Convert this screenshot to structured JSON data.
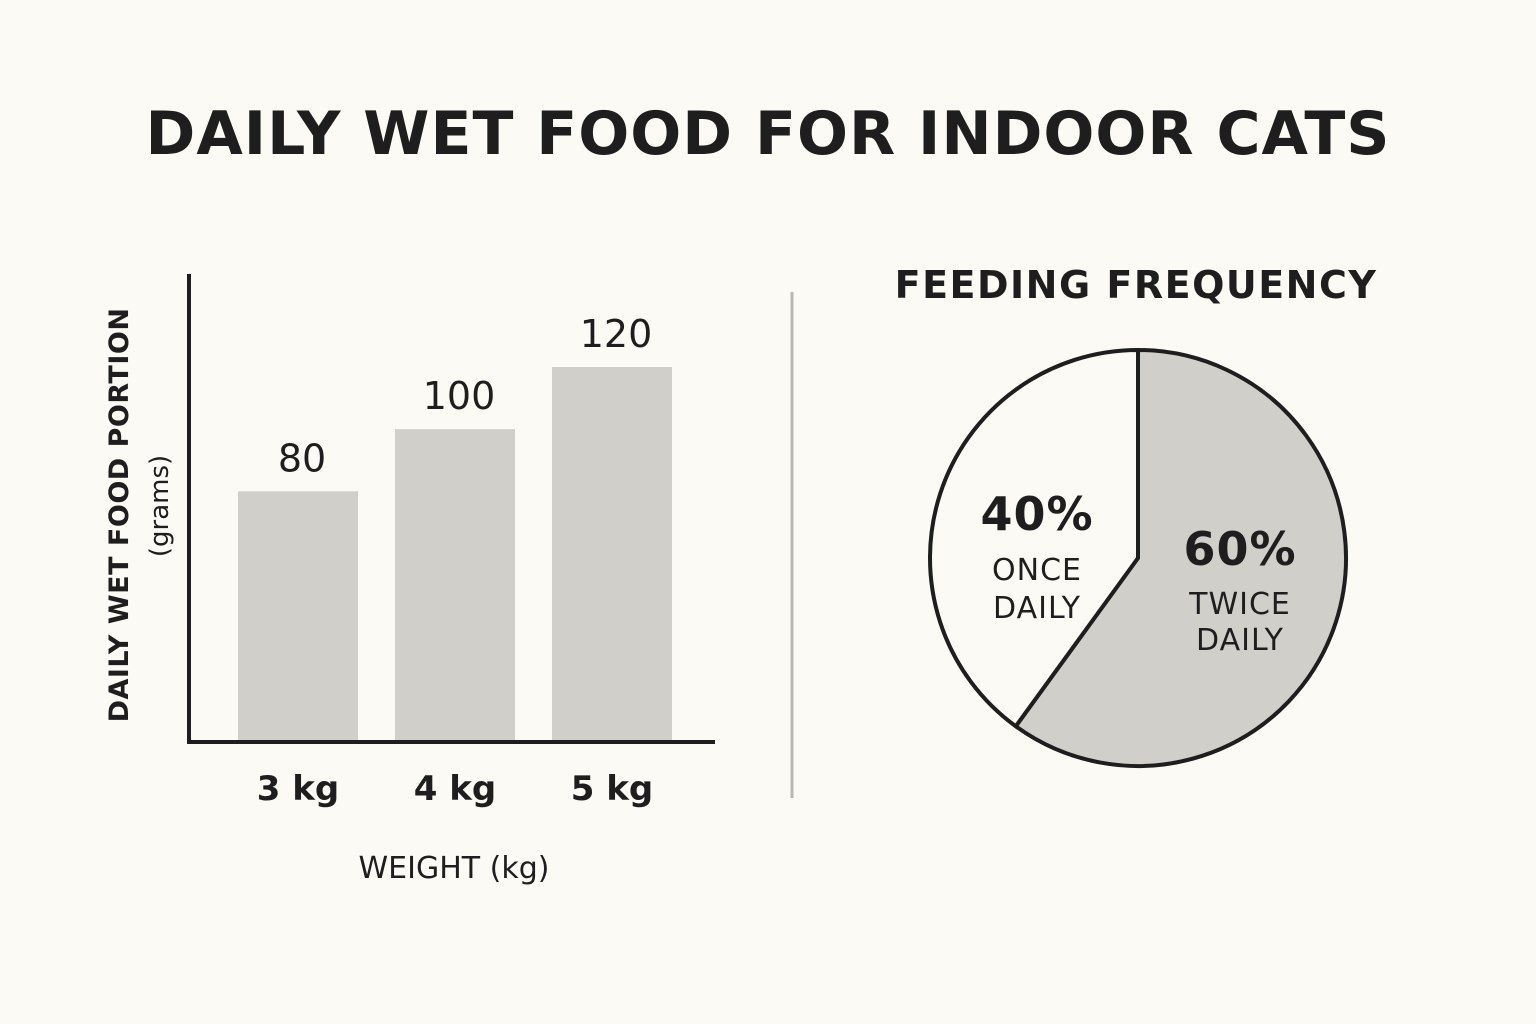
{
  "title": "DAILY WET FOOD FOR INDOOR CATS",
  "colors": {
    "background": "#fbfaf5",
    "bar": "#d0cfca",
    "ink": "#1e1e1e",
    "divider": "#b8b8b4",
    "pie_twice": "#d0cfca",
    "pie_once": "#fbfaf5"
  },
  "chart_data": [
    {
      "type": "bar",
      "categories": [
        "3 kg",
        "4 kg",
        "5 kg"
      ],
      "values": [
        80,
        100,
        120
      ],
      "data_labels": [
        "80",
        "100",
        "120"
      ],
      "xlabel": "WEIGHT (kg)",
      "ylabel": "DAILY WET FOOD PORTION",
      "ylabel_unit": "(grams)",
      "ylim": [
        0,
        130
      ],
      "grid": false
    },
    {
      "type": "pie",
      "title": "FEEDING FREQUENCY",
      "slices": [
        {
          "label_line1": "TWICE",
          "label_line2": "DAILY",
          "percent_label": "60%",
          "value": 60
        },
        {
          "label_line1": "ONCE",
          "label_line2": "DAILY",
          "percent_label": "40%",
          "value": 40
        }
      ]
    }
  ]
}
